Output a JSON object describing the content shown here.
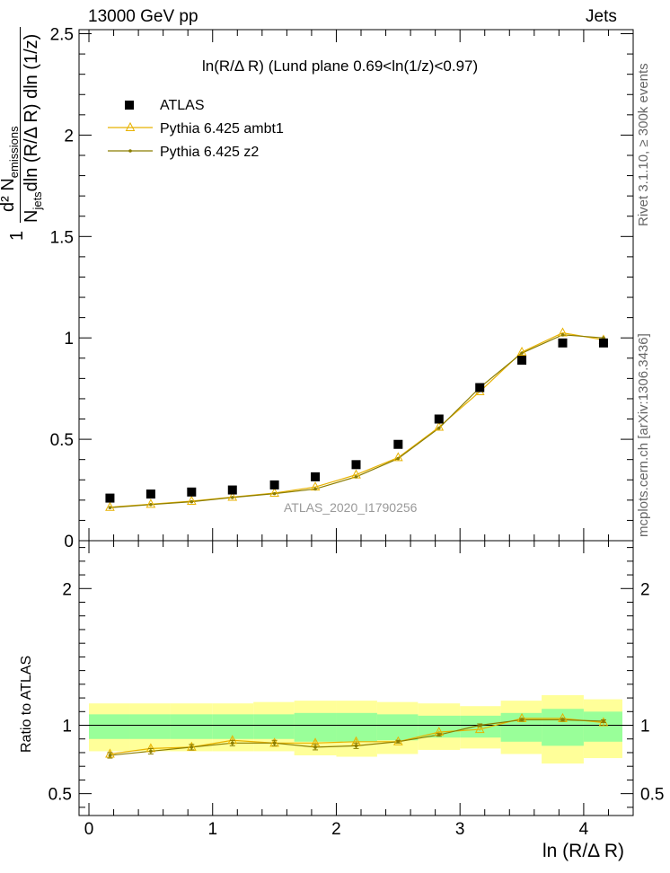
{
  "header": {
    "energy": "13000 GeV pp",
    "process": "Jets"
  },
  "side": {
    "rivet": "Rivet 3.1.10, ≥ 300k events",
    "mcplots": "mcplots.cern.ch [arXiv:1306.3436]"
  },
  "chart_data": [
    {
      "type": "scatter",
      "panel": "main",
      "title": "ln(R/Δ R) (Lund plane 0.69<ln(1/z)<0.97)",
      "watermark": "ATLAS_2020_I1790256",
      "xlabel": "ln (R/Δ R)",
      "ylabel": "1/N_jets d²N_emissions / dln (R/Δ R) dln (1/z)",
      "ylabel_parts": {
        "one": "1",
        "num_d": "d² N",
        "num_sub": "emissions",
        "den_n": "N",
        "den_sub": "jets",
        "den_rest": "dln (R/Δ R) dln (1/z)"
      },
      "xlim": [
        -0.08,
        4.4
      ],
      "ylim": [
        0,
        2.52
      ],
      "yticks": [
        0,
        0.5,
        1,
        1.5,
        2,
        2.5
      ],
      "ytick_labels": [
        "0",
        "0.5",
        "1",
        "1.5",
        "2",
        "2.5"
      ],
      "legend": "top-left",
      "series": [
        {
          "name": "ATLAS",
          "style": "black-square",
          "x": [
            0.17,
            0.5,
            0.83,
            1.16,
            1.5,
            1.83,
            2.16,
            2.5,
            2.83,
            3.16,
            3.5,
            3.83,
            4.16
          ],
          "values": [
            0.21,
            0.23,
            0.24,
            0.25,
            0.275,
            0.315,
            0.375,
            0.475,
            0.6,
            0.755,
            0.89,
            0.975,
            0.975
          ]
        },
        {
          "name": "Pythia 6.425 ambt1",
          "style": "open-triangle",
          "color": "#e8b200",
          "x": [
            0.17,
            0.5,
            0.83,
            1.16,
            1.5,
            1.83,
            2.16,
            2.5,
            2.83,
            3.16,
            3.5,
            3.83,
            4.16
          ],
          "values": [
            0.165,
            0.18,
            0.195,
            0.215,
            0.235,
            0.265,
            0.325,
            0.41,
            0.56,
            0.735,
            0.93,
            1.025,
            0.99
          ]
        },
        {
          "name": "Pythia 6.425 z2",
          "style": "small-dot",
          "color": "#8b7d00",
          "x": [
            0.17,
            0.5,
            0.83,
            1.16,
            1.5,
            1.83,
            2.16,
            2.5,
            2.83,
            3.16,
            3.5,
            3.83,
            4.16
          ],
          "values": [
            0.163,
            0.178,
            0.192,
            0.213,
            0.232,
            0.255,
            0.315,
            0.405,
            0.555,
            0.755,
            0.925,
            1.015,
            1.0
          ]
        }
      ]
    },
    {
      "type": "scatter",
      "panel": "ratio",
      "xlabel": "ln (R/Δ R)",
      "ylabel": "Ratio to ATLAS",
      "xlim": [
        -0.08,
        4.4
      ],
      "ylim": [
        0.34,
        2.35
      ],
      "yticks": [
        0.5,
        1,
        2
      ],
      "ytick_labels": [
        "0.5",
        "1",
        "2"
      ],
      "xticks": [
        0,
        1,
        2,
        3,
        4
      ],
      "xtick_labels": [
        "0",
        "1",
        "2",
        "3",
        "4"
      ],
      "bands": {
        "edges": [
          0,
          0.33,
          0.66,
          1.0,
          1.33,
          1.66,
          2.0,
          2.33,
          2.66,
          3.0,
          3.33,
          3.66,
          4.0,
          4.33
        ],
        "yellow_lo": [
          0.81,
          0.81,
          0.81,
          0.81,
          0.81,
          0.78,
          0.77,
          0.79,
          0.82,
          0.83,
          0.79,
          0.72,
          0.76
        ],
        "yellow_hi": [
          1.16,
          1.16,
          1.16,
          1.16,
          1.17,
          1.18,
          1.18,
          1.17,
          1.16,
          1.14,
          1.18,
          1.22,
          1.19
        ],
        "green_lo": [
          0.9,
          0.9,
          0.9,
          0.9,
          0.9,
          0.88,
          0.88,
          0.89,
          0.91,
          0.91,
          0.88,
          0.85,
          0.88
        ],
        "green_hi": [
          1.08,
          1.08,
          1.08,
          1.08,
          1.08,
          1.09,
          1.09,
          1.08,
          1.07,
          1.07,
          1.09,
          1.12,
          1.1
        ]
      },
      "series": [
        {
          "name": "Pythia 6.425 ambt1",
          "x": [
            0.17,
            0.5,
            0.83,
            1.16,
            1.5,
            1.83,
            2.16,
            2.5,
            2.83,
            3.16,
            3.5,
            3.83,
            4.16
          ],
          "values": [
            0.79,
            0.83,
            0.84,
            0.89,
            0.87,
            0.87,
            0.88,
            0.88,
            0.95,
            0.97,
            1.05,
            1.05,
            1.02
          ],
          "errors": [
            0.02,
            0.02,
            0.02,
            0.02,
            0.02,
            0.02,
            0.02,
            0.01,
            0.01,
            0.01,
            0.01,
            0.01,
            0.02
          ]
        },
        {
          "name": "Pythia 6.425 z2",
          "x": [
            0.17,
            0.5,
            0.83,
            1.16,
            1.5,
            1.83,
            2.16,
            2.5,
            2.83,
            3.16,
            3.5,
            3.83,
            4.16
          ],
          "values": [
            0.78,
            0.81,
            0.84,
            0.87,
            0.87,
            0.84,
            0.85,
            0.88,
            0.93,
            1.0,
            1.04,
            1.04,
            1.03
          ],
          "errors": [
            0.02,
            0.02,
            0.02,
            0.02,
            0.02,
            0.02,
            0.02,
            0.01,
            0.01,
            0.01,
            0.01,
            0.01,
            0.01
          ]
        }
      ]
    }
  ]
}
